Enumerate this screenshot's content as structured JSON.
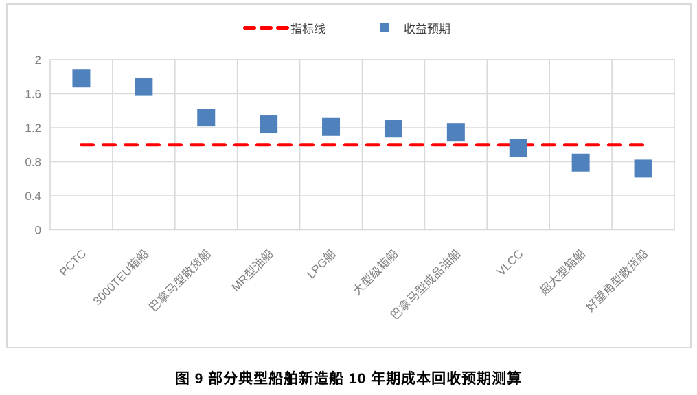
{
  "figure": {
    "caption": "图 9 部分典型船舶新造船 10 年期成本回收预期测算"
  },
  "chart_data": {
    "type": "scatter",
    "title": "",
    "xlabel": "",
    "ylabel": "",
    "categories": [
      "PCTC",
      "3000TEU箱船",
      "巴拿马型散货船",
      "MR型油船",
      "LPG船",
      "大型级箱船",
      "巴拿马型成品油船",
      "VLCC",
      "超大型箱船",
      "好望角型散货船"
    ],
    "series": [
      {
        "name": "指标线",
        "type": "dashed-horizontal-line",
        "color": "#ff0000",
        "constant_value": 1.0
      },
      {
        "name": "收益预期",
        "type": "square-marker-scatter",
        "color": "#4f81bd",
        "values": [
          1.78,
          1.68,
          1.32,
          1.24,
          1.21,
          1.19,
          1.15,
          0.96,
          0.79,
          0.72
        ]
      }
    ],
    "ylim": [
      0,
      2
    ],
    "yticks": [
      0,
      0.4,
      0.8,
      1.2,
      1.6,
      2
    ],
    "ytick_labels": [
      "0",
      "0.4",
      "0.8",
      "1.2",
      "1.6",
      "2"
    ],
    "grid": true,
    "x_label_rotation_deg": -45,
    "legend_position": "top-center",
    "colors": {
      "gridline": "#d9d9d9",
      "axis_text": "#808080",
      "legend_text": "#404040",
      "marker": "#4f81bd",
      "indicator_line": "#ff0000",
      "background": "#ffffff"
    }
  }
}
